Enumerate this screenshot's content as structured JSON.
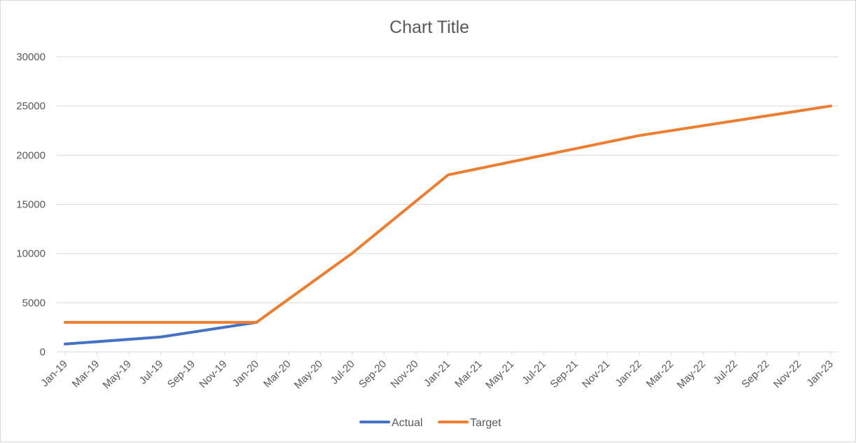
{
  "chart_data": {
    "type": "line",
    "title": "Chart Title",
    "xlabel": "",
    "ylabel": "",
    "x_tick_labels": [
      "Jan-19",
      "Mar-19",
      "May-19",
      "Jul-19",
      "Sep-19",
      "Nov-19",
      "Jan-20",
      "Mar-20",
      "May-20",
      "Jul-20",
      "Sep-20",
      "Nov-20",
      "Jan-21",
      "Mar-21",
      "May-21",
      "Jul-21",
      "Sep-21",
      "Nov-21",
      "Jan-22",
      "Mar-22",
      "May-22",
      "Jul-22",
      "Sep-22",
      "Nov-22",
      "Jan-23"
    ],
    "xlim": [
      "2019-01-01",
      "2023-01-01"
    ],
    "ylim": [
      0,
      30000
    ],
    "y_ticks": [
      0,
      5000,
      10000,
      15000,
      20000,
      25000,
      30000
    ],
    "grid": "horizontal",
    "legend_position": "bottom",
    "series": [
      {
        "name": "Actual",
        "color": "#4472C4",
        "points": [
          {
            "x": "2019-01-01",
            "y": 800
          },
          {
            "x": "2019-07-01",
            "y": 1500
          },
          {
            "x": "2020-01-01",
            "y": 3000
          }
        ]
      },
      {
        "name": "Target",
        "color": "#ED7D31",
        "points": [
          {
            "x": "2019-01-01",
            "y": 3000
          },
          {
            "x": "2020-01-01",
            "y": 3000
          },
          {
            "x": "2020-07-01",
            "y": 10000
          },
          {
            "x": "2021-01-01",
            "y": 18000
          },
          {
            "x": "2022-01-01",
            "y": 22000
          },
          {
            "x": "2023-01-01",
            "y": 25000
          }
        ]
      }
    ]
  }
}
